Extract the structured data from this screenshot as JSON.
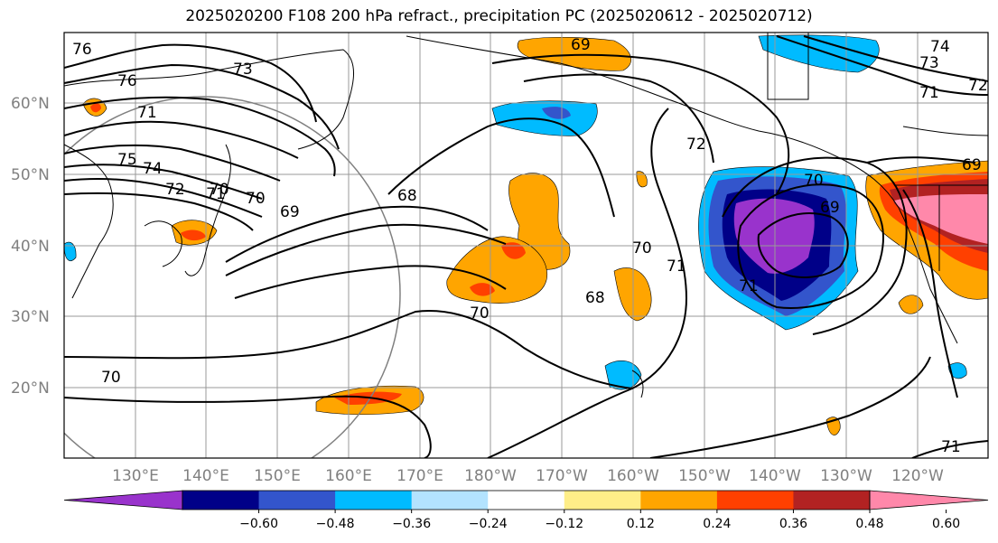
{
  "title": "2025020200 F108 200 hPa refract., precipitation PC (2025020612 - 2025020712)",
  "map": {
    "lat_labels": [
      "60°N",
      "50°N",
      "40°N",
      "30°N",
      "20°N"
    ],
    "lon_labels": [
      "130°E",
      "140°E",
      "150°E",
      "160°E",
      "170°E",
      "180°W",
      "170°W",
      "160°W",
      "150°W",
      "140°W",
      "130°W",
      "120°W"
    ],
    "contour_labels": [
      "76",
      "76",
      "73",
      "71",
      "75",
      "74",
      "72",
      "71",
      "70",
      "69",
      "68",
      "69",
      "70",
      "72",
      "71",
      "70",
      "70",
      "68",
      "69",
      "70",
      "71",
      "74",
      "73",
      "71",
      "72",
      "69",
      "70",
      "71"
    ]
  },
  "colorbar": {
    "colors": [
      "#9933cc",
      "#000088",
      "#3355cc",
      "#00bbff",
      "#b3e3ff",
      "#ffffff",
      "#ffee88",
      "#ffa500",
      "#ff4000",
      "#b22222",
      "#ff88aa"
    ],
    "tick_labels": [
      "−0.60",
      "−0.48",
      "−0.36",
      "−0.24",
      "−0.12",
      "0.12",
      "0.24",
      "0.36",
      "0.48",
      "0.60"
    ]
  }
}
